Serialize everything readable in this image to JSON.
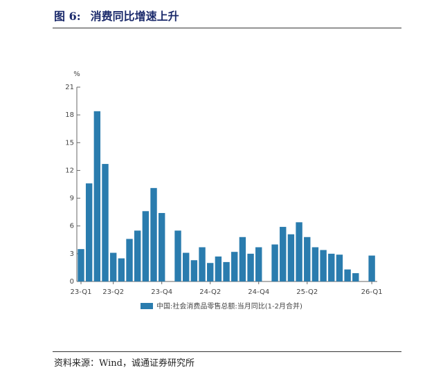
{
  "header": {
    "label": "图 6:",
    "title": "消费同比增速上升"
  },
  "chart_data": {
    "type": "bar",
    "y_unit": "%",
    "categories": [
      "23-Q1",
      null,
      null,
      null,
      "23-Q2",
      null,
      null,
      null,
      null,
      null,
      "23-Q4",
      null,
      null,
      null,
      null,
      null,
      "24-Q2",
      null,
      null,
      null,
      null,
      null,
      "24-Q4",
      null,
      null,
      null,
      null,
      null,
      "25-Q2",
      null,
      null,
      null,
      null,
      null,
      null,
      null,
      "26-Q1"
    ],
    "series": [
      {
        "name": "中国:社会消费品零售总额:当月同比(1-2月合并)",
        "color": "#2a7cae",
        "values": [
          3.5,
          10.6,
          18.4,
          12.7,
          3.1,
          2.5,
          4.6,
          5.5,
          7.6,
          10.1,
          7.4,
          null,
          5.5,
          3.1,
          2.3,
          3.7,
          2.0,
          2.7,
          2.1,
          3.2,
          4.8,
          3.0,
          3.7,
          null,
          4.0,
          5.9,
          5.1,
          6.4,
          4.8,
          3.7,
          3.4,
          3.0,
          2.9,
          1.3,
          0.9,
          null,
          2.8
        ]
      }
    ],
    "ylim": [
      0,
      21
    ],
    "yticks": [
      0,
      3,
      6,
      9,
      12,
      15,
      18,
      21
    ]
  },
  "source": "资料来源：Wind，诚通证券研究所"
}
